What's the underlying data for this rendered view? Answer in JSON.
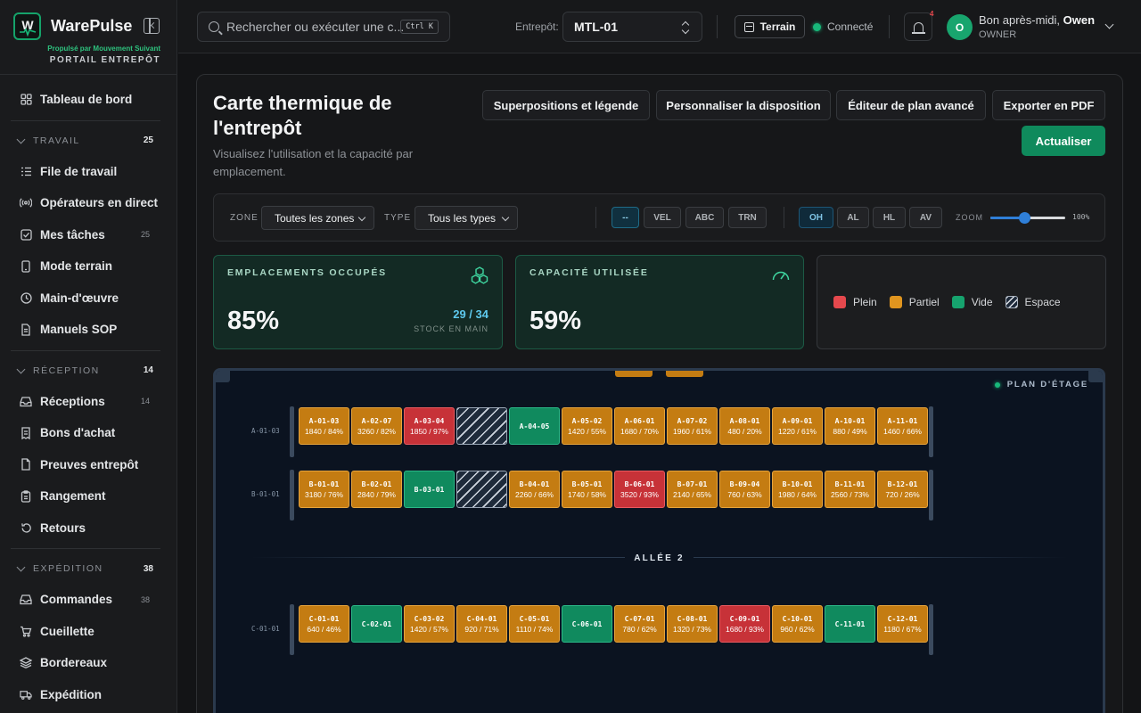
{
  "brand": {
    "name": "WarePulse",
    "subtitle": "Propulsé par Mouvement Suivant",
    "portal": "PORTAIL ENTREPÔT"
  },
  "sidebar": {
    "dashboard": {
      "label": "Tableau de bord",
      "icon": "grid-icon"
    },
    "sections": [
      {
        "title": "TRAVAIL",
        "count": "25",
        "items": [
          {
            "label": "File de travail",
            "icon": "list-icon",
            "count": ""
          },
          {
            "label": "Opérateurs en direct",
            "icon": "broadcast-icon",
            "count": ""
          },
          {
            "label": "Mes tâches",
            "icon": "checkbox-icon",
            "count": "25"
          },
          {
            "label": "Mode terrain",
            "icon": "mobile-icon",
            "count": ""
          },
          {
            "label": "Main-d'œuvre",
            "icon": "clock-icon",
            "count": ""
          },
          {
            "label": "Manuels SOP",
            "icon": "document-icon",
            "count": ""
          }
        ]
      },
      {
        "title": "RÉCEPTION",
        "count": "14",
        "items": [
          {
            "label": "Réceptions",
            "icon": "inbox-icon",
            "count": "14"
          },
          {
            "label": "Bons d'achat",
            "icon": "receipt-icon",
            "count": ""
          },
          {
            "label": "Preuves entrepôt",
            "icon": "file-icon",
            "count": ""
          },
          {
            "label": "Rangement",
            "icon": "clipboard-icon",
            "count": ""
          },
          {
            "label": "Retours",
            "icon": "return-icon",
            "count": ""
          }
        ]
      },
      {
        "title": "EXPÉDITION",
        "count": "38",
        "items": [
          {
            "label": "Commandes",
            "icon": "inbox-icon",
            "count": "38"
          },
          {
            "label": "Cueillette",
            "icon": "cart-icon",
            "count": ""
          },
          {
            "label": "Bordereaux",
            "icon": "layers-icon",
            "count": ""
          },
          {
            "label": "Expédition",
            "icon": "truck-icon",
            "count": ""
          }
        ]
      }
    ]
  },
  "topbar": {
    "search_placeholder": "Rechercher ou exécuter une c...",
    "shortcut": "Ctrl K",
    "warehouse_label": "Entrepôt:",
    "warehouse_value": "MTL-01",
    "terrain_button": "Terrain",
    "connection_status": "Connecté",
    "notification_count": "4",
    "avatar_initial": "O",
    "greeting": "Bon après-midi,",
    "user_name": "Owen",
    "role": "OWNER"
  },
  "page": {
    "title": "Carte thermique de l'entrepôt",
    "subtitle": "Visualisez l'utilisation et la capacité par emplacement.",
    "buttons": {
      "overlays": "Superpositions et légende",
      "customize": "Personnaliser la disposition",
      "editor": "Éditeur de plan avancé",
      "export": "Exporter en PDF",
      "refresh": "Actualiser"
    }
  },
  "filters": {
    "zone_label": "ZONE",
    "zone_value": "Toutes les zones",
    "type_label": "TYPE",
    "type_value": "Tous les types",
    "velocity_chips": [
      "--",
      "VEL",
      "ABC",
      "TRN"
    ],
    "velocity_active": "--",
    "metric_chips": [
      "OH",
      "AL",
      "HL",
      "AV"
    ],
    "metric_active": "OH",
    "zoom_label": "ZOOM",
    "zoom_value": "100%",
    "zoom_fraction": 0.45
  },
  "kpis": {
    "occupied": {
      "title": "EMPLACEMENTS OCCUPÉS",
      "value": "85%",
      "ratio": "29 / 34",
      "note": "STOCK EN MAIN"
    },
    "capacity": {
      "title": "CAPACITÉ UTILISÉE",
      "value": "59%"
    },
    "legend": [
      {
        "label": "Plein",
        "color": "#e5484d"
      },
      {
        "label": "Partiel",
        "color": "#e0951f"
      },
      {
        "label": "Vide",
        "color": "#16a36e"
      },
      {
        "label": "Espace",
        "color": "hatched"
      }
    ]
  },
  "floor": {
    "label": "PLAN D'ÉTAGE",
    "aisle_label": "ALLÉE 2",
    "colors": {
      "full": "#c73238",
      "partial": "#c47c12",
      "empty": "#108a5e"
    },
    "rows": [
      {
        "label": "A-01-03",
        "slots": [
          {
            "id": "A-01-03",
            "value": "1840 / 84%",
            "state": "partial"
          },
          {
            "id": "A-02-07",
            "value": "3260 / 82%",
            "state": "partial"
          },
          {
            "id": "A-03-04",
            "value": "1850 / 97%",
            "state": "full"
          },
          {
            "id": "",
            "value": "",
            "state": "space"
          },
          {
            "id": "A-04-05",
            "value": "",
            "state": "empty"
          },
          {
            "id": "A-05-02",
            "value": "1420 / 55%",
            "state": "partial"
          },
          {
            "id": "A-06-01",
            "value": "1680 / 70%",
            "state": "partial"
          },
          {
            "id": "A-07-02",
            "value": "1960 / 61%",
            "state": "partial"
          },
          {
            "id": "A-08-01",
            "value": "480 / 20%",
            "state": "partial"
          },
          {
            "id": "A-09-01",
            "value": "1220 / 61%",
            "state": "partial"
          },
          {
            "id": "A-10-01",
            "value": "880 / 49%",
            "state": "partial"
          },
          {
            "id": "A-11-01",
            "value": "1460 / 66%",
            "state": "partial"
          }
        ]
      },
      {
        "label": "B-01-01",
        "slots": [
          {
            "id": "B-01-01",
            "value": "3180 / 76%",
            "state": "partial"
          },
          {
            "id": "B-02-01",
            "value": "2840 / 79%",
            "state": "partial"
          },
          {
            "id": "B-03-01",
            "value": "",
            "state": "empty"
          },
          {
            "id": "",
            "value": "",
            "state": "space"
          },
          {
            "id": "B-04-01",
            "value": "2260 / 66%",
            "state": "partial"
          },
          {
            "id": "B-05-01",
            "value": "1740 / 58%",
            "state": "partial"
          },
          {
            "id": "B-06-01",
            "value": "3520 / 93%",
            "state": "full"
          },
          {
            "id": "B-07-01",
            "value": "2140 / 65%",
            "state": "partial"
          },
          {
            "id": "B-09-04",
            "value": "760 / 63%",
            "state": "partial"
          },
          {
            "id": "B-10-01",
            "value": "1980 / 64%",
            "state": "partial"
          },
          {
            "id": "B-11-01",
            "value": "2560 / 73%",
            "state": "partial"
          },
          {
            "id": "B-12-01",
            "value": "720 / 26%",
            "state": "partial"
          }
        ]
      },
      {
        "label": "C-01-01",
        "slots": [
          {
            "id": "C-01-01",
            "value": "640 / 46%",
            "state": "partial"
          },
          {
            "id": "C-02-01",
            "value": "",
            "state": "empty"
          },
          {
            "id": "C-03-02",
            "value": "1420 / 57%",
            "state": "partial"
          },
          {
            "id": "C-04-01",
            "value": "920 / 71%",
            "state": "partial"
          },
          {
            "id": "C-05-01",
            "value": "1110 / 74%",
            "state": "partial"
          },
          {
            "id": "C-06-01",
            "value": "",
            "state": "empty"
          },
          {
            "id": "C-07-01",
            "value": "780 / 62%",
            "state": "partial"
          },
          {
            "id": "C-08-01",
            "value": "1320 / 73%",
            "state": "partial"
          },
          {
            "id": "C-09-01",
            "value": "1680 / 93%",
            "state": "full"
          },
          {
            "id": "C-10-01",
            "value": "960 / 62%",
            "state": "partial"
          },
          {
            "id": "C-11-01",
            "value": "",
            "state": "empty"
          },
          {
            "id": "C-12-01",
            "value": "1180 / 67%",
            "state": "partial"
          }
        ]
      }
    ]
  }
}
